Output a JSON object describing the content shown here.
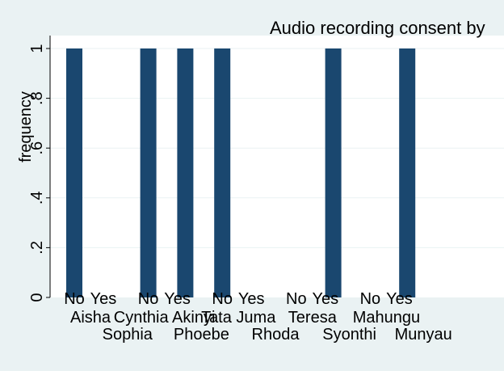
{
  "chart_data": {
    "type": "bar",
    "title": "Audio recording consent by",
    "ylabel": "frequency",
    "xlabel": "",
    "ylim": [
      0,
      1
    ],
    "y_ticks": [
      {
        "value": 0,
        "label": "0"
      },
      {
        "value": 0.2,
        "label": ".2"
      },
      {
        "value": 0.4,
        "label": ".4"
      },
      {
        "value": 0.6,
        "label": ".6"
      },
      {
        "value": 0.8,
        "label": ".8"
      },
      {
        "value": 1,
        "label": "1"
      }
    ],
    "grid": true,
    "legend": "none",
    "bar_color": "#1a476f",
    "groups": [
      {
        "name": "Aisha",
        "bars": [
          {
            "category": "No",
            "value": 1
          },
          {
            "category": "Yes",
            "value": 0
          }
        ]
      },
      {
        "name": "Sophia",
        "bars": [
          {
            "category": "No",
            "value": 0
          },
          {
            "category": "Yes",
            "value": 0
          }
        ]
      },
      {
        "name": "Cynthia Akinyi",
        "bars": [
          {
            "category": "No",
            "value": 1
          },
          {
            "category": "Yes",
            "value": 0
          }
        ]
      },
      {
        "name": "Phoebe",
        "bars": [
          {
            "category": "No",
            "value": 1
          },
          {
            "category": "Yes",
            "value": 0
          }
        ]
      },
      {
        "name": "Tata Juma",
        "bars": [
          {
            "category": "No",
            "value": 1
          },
          {
            "category": "Yes",
            "value": 0
          }
        ]
      },
      {
        "name": "Rhoda",
        "bars": [
          {
            "category": "No",
            "value": 0
          },
          {
            "category": "Yes",
            "value": 0
          }
        ]
      },
      {
        "name": "Teresa",
        "bars": [
          {
            "category": "No",
            "value": 0
          },
          {
            "category": "Yes",
            "value": 0
          }
        ]
      },
      {
        "name": "Syonthi",
        "bars": [
          {
            "category": "No",
            "value": 1
          },
          {
            "category": "Yes",
            "value": 0
          }
        ]
      },
      {
        "name": "Mahungu",
        "bars": [
          {
            "category": "No",
            "value": 0
          },
          {
            "category": "Yes",
            "value": 0
          }
        ]
      },
      {
        "name": "Munyau",
        "bars": [
          {
            "category": "No",
            "value": 1
          },
          {
            "category": "Yes",
            "value": 0
          }
        ]
      }
    ]
  }
}
